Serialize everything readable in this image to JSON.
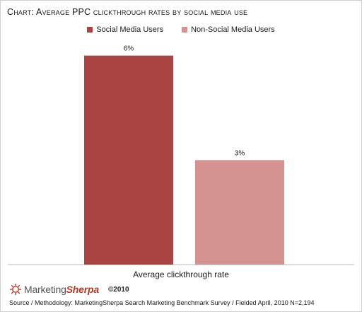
{
  "title": "Chart: Average PPC clickthrough rates by social media use",
  "chart_data": {
    "type": "bar",
    "categories": [
      "Average clickthrough rate"
    ],
    "series": [
      {
        "name": "Social Media Users",
        "values": [
          6
        ],
        "label": "6%",
        "color": "#a94442"
      },
      {
        "name": "Non-Social Media Users",
        "values": [
          3
        ],
        "label": "3%",
        "color": "#d49391"
      }
    ],
    "xlabel": "Average clickthrough rate",
    "ylim": [
      0,
      6.5
    ],
    "grid": false,
    "legend": "top-center"
  },
  "footer": {
    "brand_name_a": "Marketing",
    "brand_name_b": "Sherpa",
    "copyright": "©2010",
    "source": "Source / Methodology: MarketingSherpa Search Marketing Benchmark Survey / Fielded April, 2010 N=2,194"
  },
  "icons": [
    "marketingsherpa-logo-icon"
  ]
}
